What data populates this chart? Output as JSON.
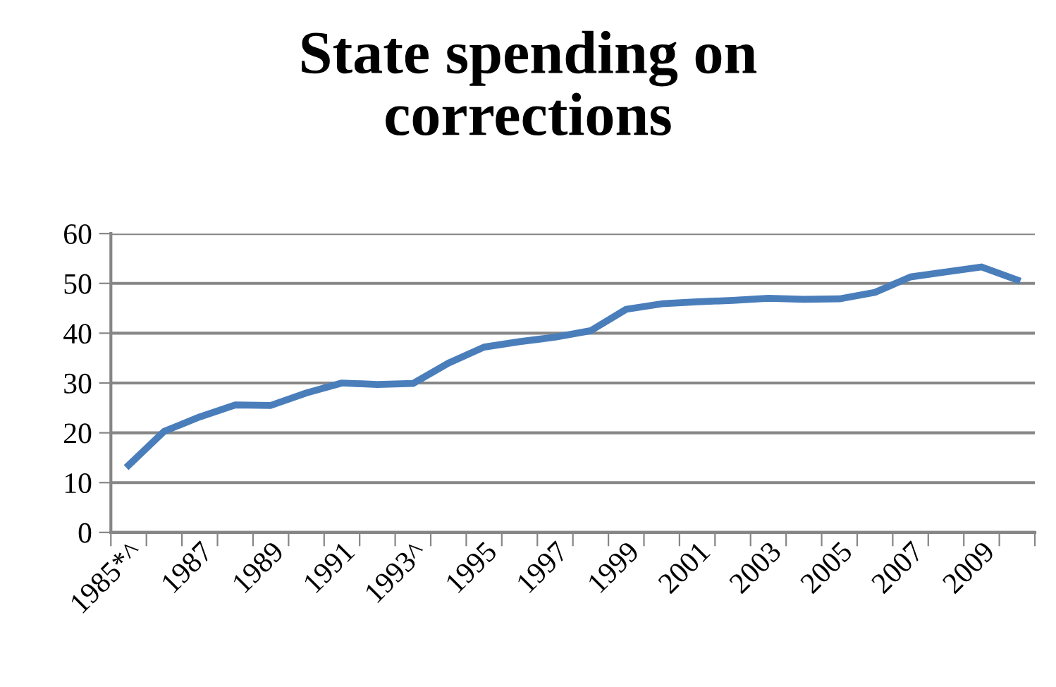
{
  "chart_data": {
    "type": "line",
    "title": "State spending on\ncorrections",
    "categories": [
      "1985*^",
      null,
      "1987",
      null,
      "1989",
      null,
      "1991",
      null,
      "1993^",
      null,
      "1995",
      null,
      "1997",
      null,
      "1999",
      null,
      "2001",
      null,
      "2003",
      null,
      "2005",
      null,
      "2007",
      null,
      "2009",
      null
    ],
    "series": [
      {
        "color": "#4a7ebb",
        "values": [
          13.5,
          20.3,
          23.2,
          25.6,
          25.5,
          28,
          30,
          29.7,
          29.9,
          34,
          37.2,
          38.3,
          39.2,
          40.5,
          44.8,
          45.9,
          46.3,
          46.6,
          47,
          46.8,
          46.9,
          48.2,
          51.3,
          52.3,
          53.3,
          50.7
        ]
      }
    ],
    "ylim": [
      0,
      60
    ],
    "yticks": [
      0,
      10,
      20,
      30,
      40,
      50,
      60
    ],
    "grid": "y",
    "legend": false,
    "marker": "none",
    "line_style": "solid"
  }
}
